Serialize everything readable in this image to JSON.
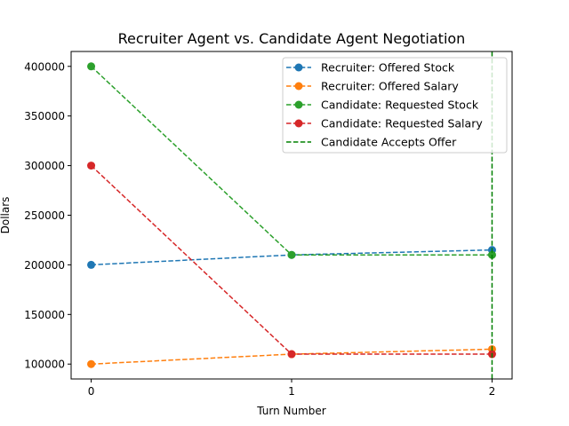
{
  "chart_data": {
    "type": "line",
    "title": "Recruiter Agent vs. Candidate Agent Negotiation",
    "xlabel": "Turn Number",
    "ylabel": "Dollars",
    "x": [
      0,
      1,
      2
    ],
    "xticks": [
      "0",
      "1",
      "2"
    ],
    "yticks": [
      "100000",
      "150000",
      "200000",
      "250000",
      "300000",
      "350000",
      "400000"
    ],
    "xlim": [
      -0.1,
      2.1
    ],
    "ylim": [
      85000,
      415000
    ],
    "grid": false,
    "legend_position": "top-right",
    "series": [
      {
        "name": "Recruiter: Offered Stock",
        "color": "#1f77b4",
        "style": "dashed-marker",
        "values": [
          200000,
          210000,
          215000
        ]
      },
      {
        "name": "Recruiter: Offered Salary",
        "color": "#ff7f0e",
        "style": "dashed-marker",
        "values": [
          100000,
          110000,
          115000
        ]
      },
      {
        "name": "Candidate: Requested Stock",
        "color": "#2ca02c",
        "style": "dashed-marker",
        "values": [
          400000,
          210000,
          210000
        ]
      },
      {
        "name": "Candidate: Requested Salary",
        "color": "#d62728",
        "style": "dashed-marker",
        "values": [
          300000,
          110000,
          110000
        ]
      }
    ],
    "vline": {
      "name": "Candidate Accepts Offer",
      "color": "#008000",
      "style": "dashed",
      "x": 2
    }
  }
}
